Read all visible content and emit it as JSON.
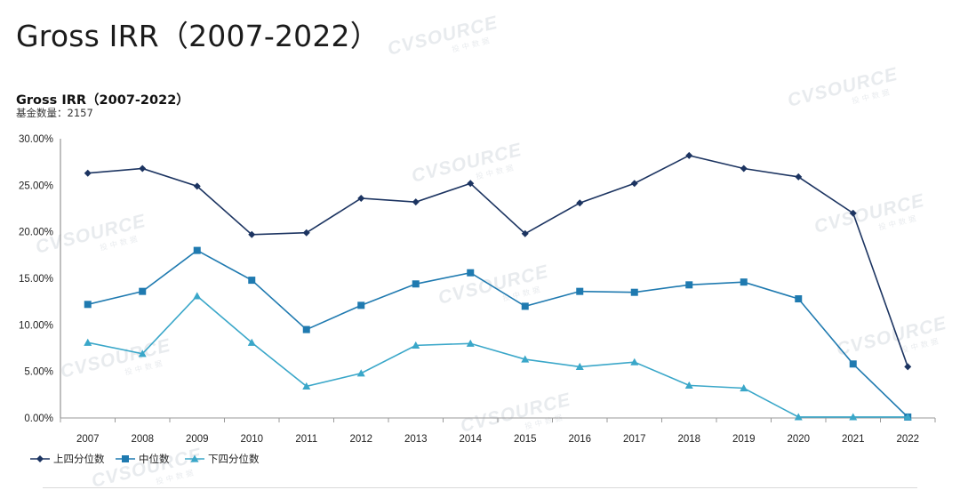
{
  "header": {
    "title": "Gross IRR（2007-2022）"
  },
  "chart_data": {
    "type": "line",
    "title": "Gross IRR（2007-2022）",
    "subtitle": "基金数量：2157",
    "xlabel": "",
    "ylabel": "",
    "ylim": [
      0,
      30
    ],
    "y_ticks": [
      "0.00%",
      "5.00%",
      "10.00%",
      "15.00%",
      "20.00%",
      "25.00%",
      "30.00%"
    ],
    "y_tick_values": [
      0,
      5,
      10,
      15,
      20,
      25,
      30
    ],
    "x": [
      "2007",
      "2008",
      "2009",
      "2010",
      "2011",
      "2012",
      "2013",
      "2014",
      "2015",
      "2016",
      "2017",
      "2018",
      "2019",
      "2020",
      "2021",
      "2022"
    ],
    "legend_position": "bottom-left",
    "grid": false,
    "series": [
      {
        "name": "上四分位数",
        "marker": "diamond",
        "color": "#1c3461",
        "values": [
          26.3,
          26.8,
          24.9,
          19.7,
          19.9,
          23.6,
          23.2,
          25.2,
          19.8,
          23.1,
          25.2,
          28.2,
          26.8,
          25.9,
          22.0,
          5.5
        ]
      },
      {
        "name": "中位数",
        "marker": "square",
        "color": "#1f7ab0",
        "values": [
          12.2,
          13.6,
          18.0,
          14.8,
          9.5,
          12.1,
          14.4,
          15.6,
          12.0,
          13.6,
          13.5,
          14.3,
          14.6,
          12.8,
          5.8,
          0.1
        ]
      },
      {
        "name": "下四分位数",
        "marker": "triangle",
        "color": "#3aa7c9",
        "values": [
          8.1,
          6.9,
          13.1,
          8.1,
          3.4,
          4.8,
          7.8,
          8.0,
          6.3,
          5.5,
          6.0,
          3.5,
          3.2,
          0.1,
          0.1,
          0.1
        ]
      }
    ]
  },
  "watermarks": [
    {
      "brand": "CVSOURCE",
      "sub": "投中数据"
    }
  ]
}
